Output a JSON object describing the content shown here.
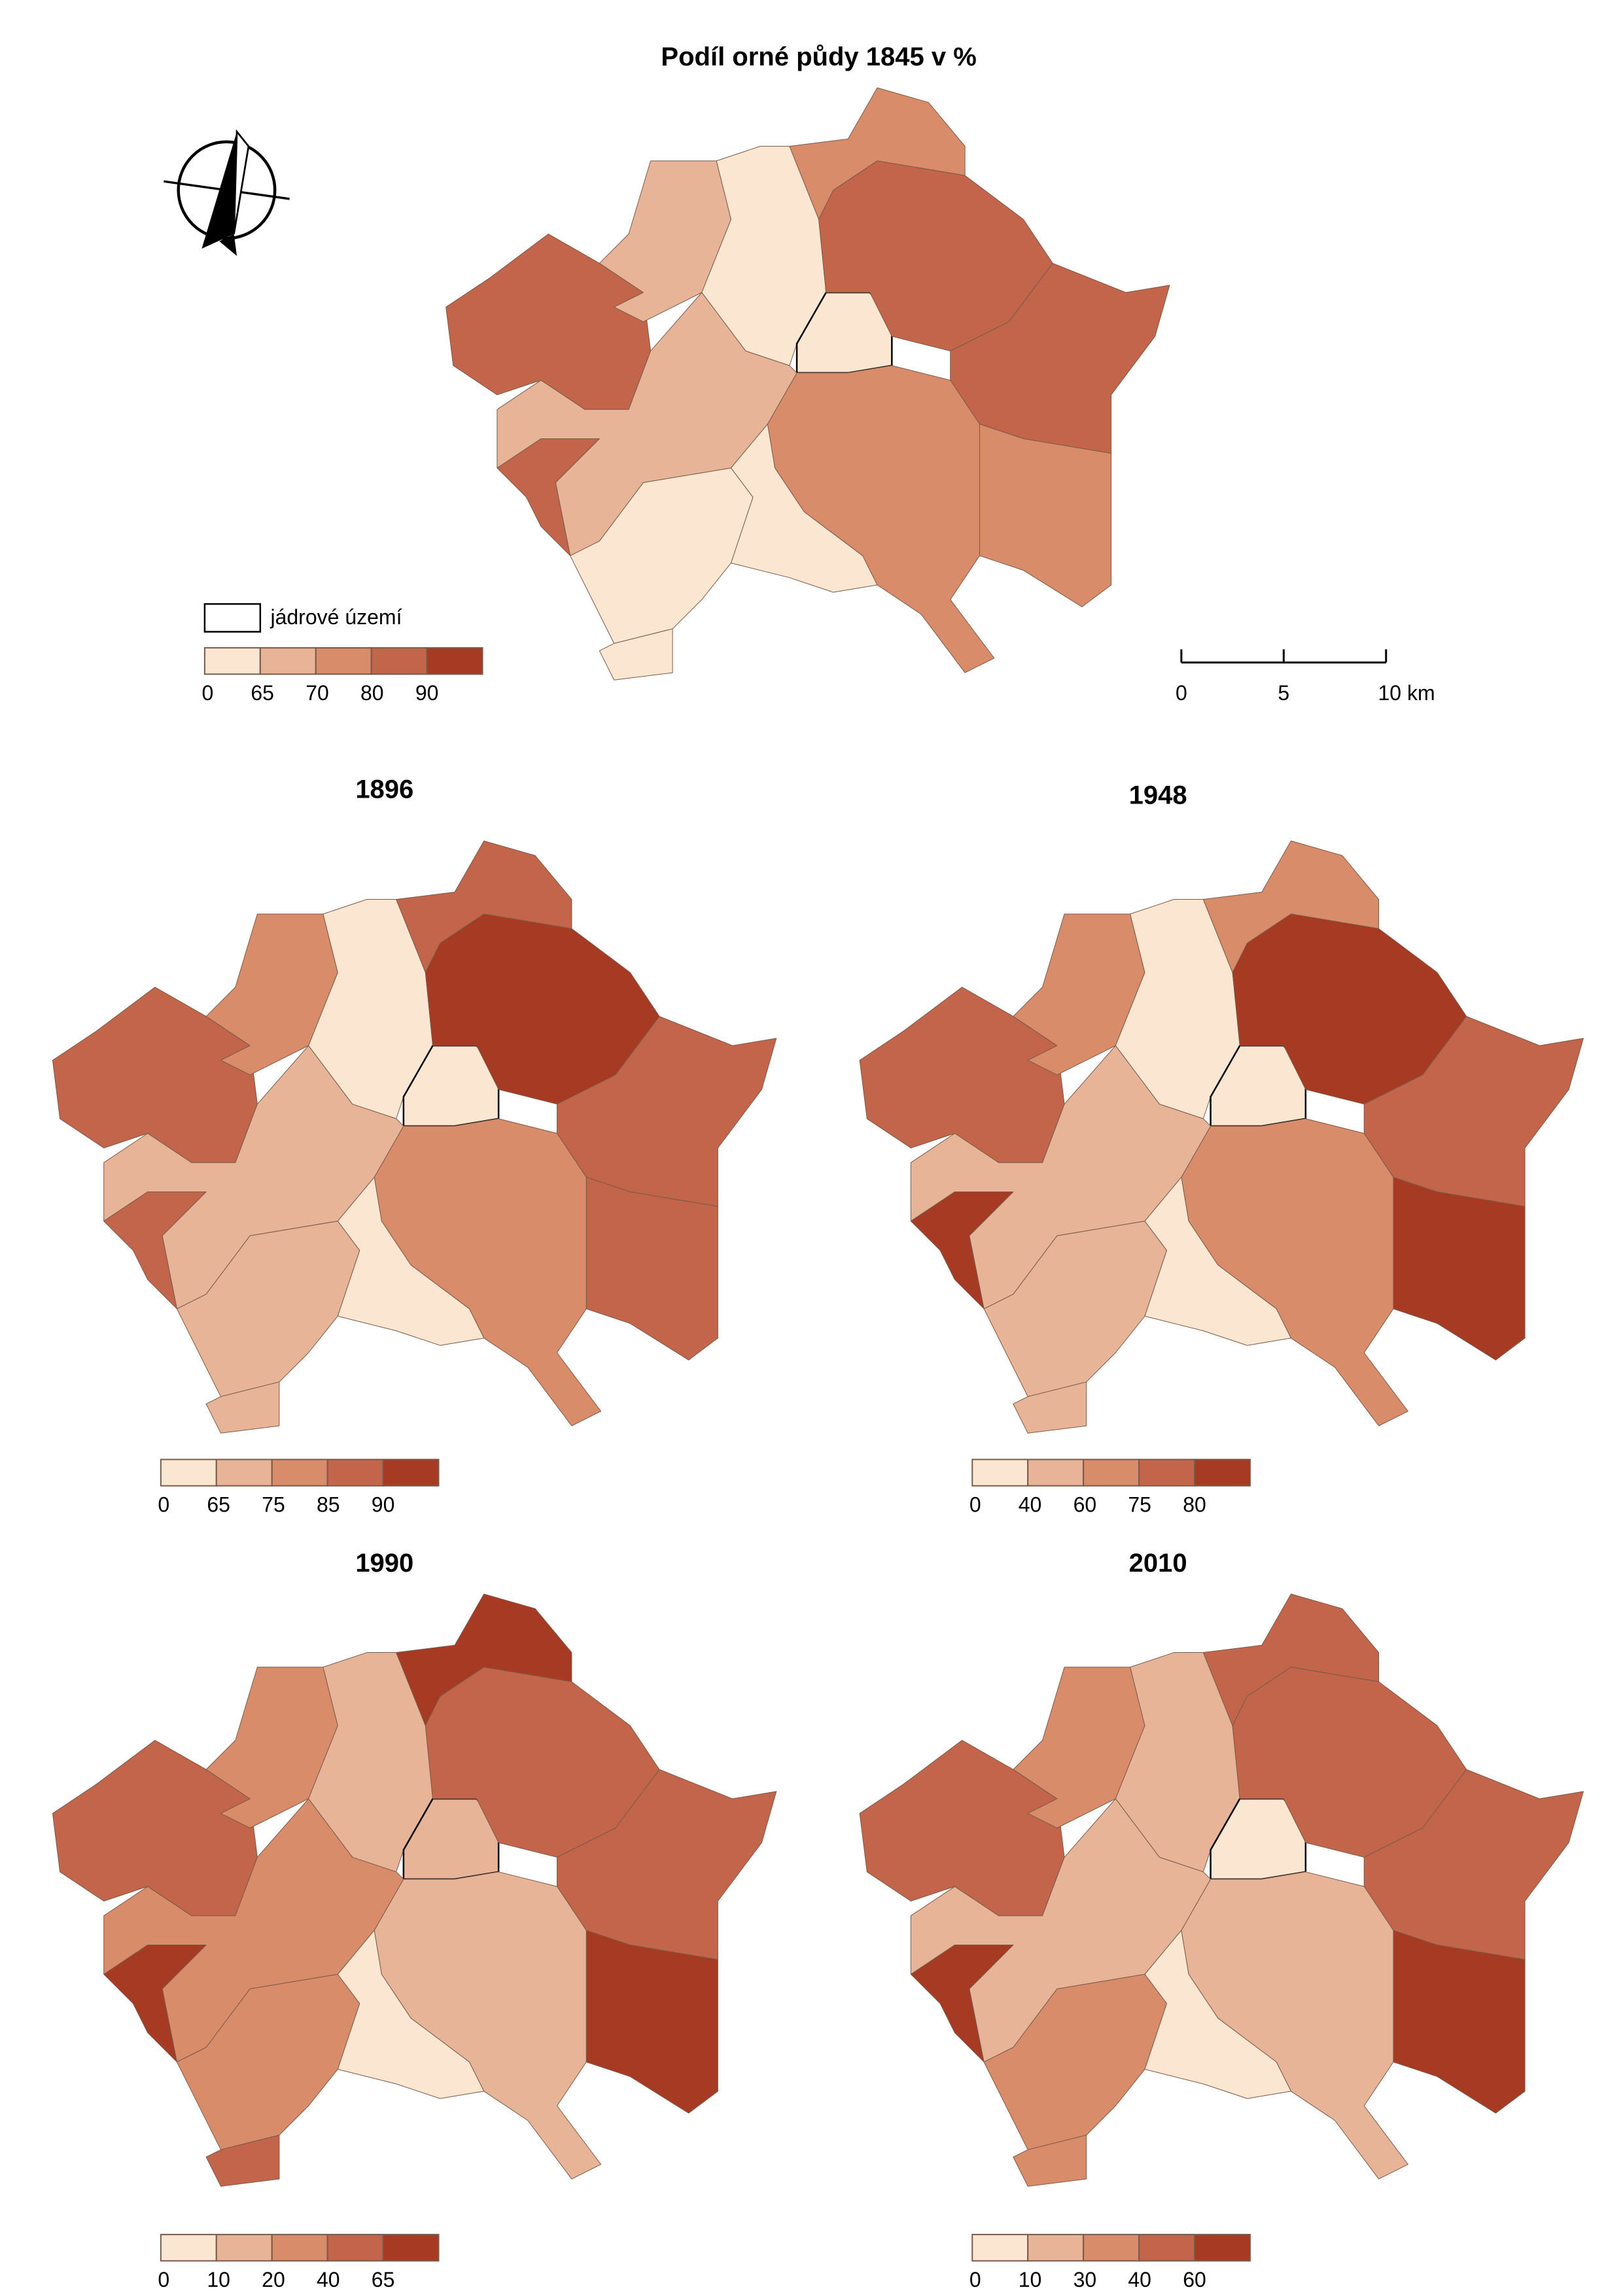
{
  "title": "Podíl orné půdy 1845 v %",
  "core_label": "jádrové území",
  "class_colors": [
    "#fbe6d2",
    "#e8b497",
    "#d98c6a",
    "#c2654a",
    "#a63a22"
  ],
  "scale_bar": [
    0,
    5,
    {
      "value": 10,
      "label": "10 km"
    }
  ],
  "maps": [
    {
      "legend_labels": [
        0,
        65,
        70,
        80,
        90
      ],
      "region_classes": [
        3,
        1,
        0,
        0,
        2,
        3,
        3,
        2,
        2,
        1,
        0,
        0,
        0,
        3
      ]
    },
    {
      "title": "1896",
      "legend_labels": [
        0,
        65,
        75,
        85,
        90
      ],
      "region_classes": [
        3,
        2,
        0,
        0,
        3,
        4,
        3,
        3,
        2,
        1,
        1,
        1,
        0,
        3
      ]
    },
    {
      "title": "1948",
      "legend_labels": [
        0,
        40,
        60,
        75,
        80
      ],
      "region_classes": [
        3,
        2,
        0,
        0,
        2,
        4,
        3,
        4,
        2,
        1,
        1,
        1,
        0,
        4
      ]
    },
    {
      "title": "1990",
      "legend_labels": [
        0,
        10,
        20,
        40,
        65
      ],
      "region_classes": [
        3,
        2,
        1,
        1,
        4,
        3,
        3,
        4,
        1,
        2,
        2,
        3,
        0,
        4
      ]
    },
    {
      "title": "2010",
      "legend_labels": [
        0,
        10,
        30,
        40,
        60
      ],
      "region_classes": [
        3,
        2,
        1,
        0,
        3,
        3,
        3,
        4,
        1,
        1,
        2,
        2,
        0,
        4
      ]
    }
  ]
}
